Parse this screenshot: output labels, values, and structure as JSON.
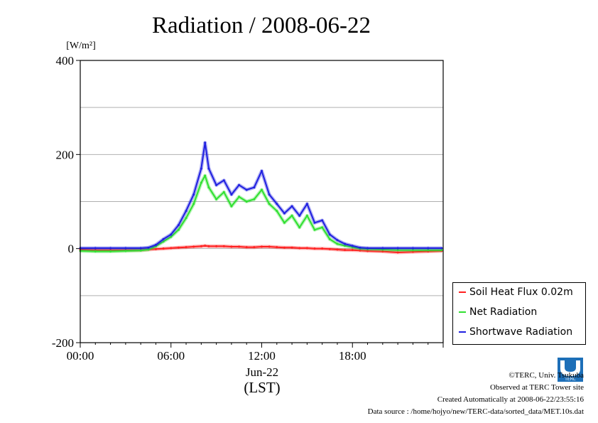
{
  "chart_data": {
    "type": "line",
    "title": "Radiation / 2008-06-22",
    "ylabel_unit": "[W/m²]",
    "xlabel_date": "Jun-22",
    "xlabel_tz": "(LST)",
    "xlim": [
      "00:00",
      "24:00"
    ],
    "ylim": [
      -200,
      400
    ],
    "yticks": [
      -200,
      0,
      200,
      400
    ],
    "xtick_labels": [
      "00:00",
      "06:00",
      "12:00",
      "18:00"
    ],
    "grid": true,
    "legend_position": "right-bottom-outside",
    "x_hours": [
      0,
      1,
      2,
      3,
      4,
      4.5,
      5,
      5.5,
      6,
      6.5,
      7,
      7.5,
      8,
      8.25,
      8.5,
      9,
      9.5,
      10,
      10.5,
      11,
      11.5,
      12,
      12.5,
      13,
      13.5,
      14,
      14.5,
      15,
      15.5,
      16,
      16.5,
      17,
      17.5,
      18,
      18.5,
      19,
      20,
      21,
      22,
      23,
      23.9
    ],
    "series": [
      {
        "name": "Soil Heat Flux 0.02m",
        "color": "#ff2020",
        "values": [
          -2,
          -3,
          -3,
          -3,
          -3,
          -2,
          -1,
          0,
          1,
          2,
          3,
          4,
          5,
          6,
          5,
          5,
          5,
          4,
          4,
          3,
          3,
          4,
          4,
          3,
          2,
          2,
          1,
          1,
          0,
          0,
          -1,
          -2,
          -3,
          -3,
          -4,
          -5,
          -6,
          -8,
          -7,
          -6,
          -5
        ]
      },
      {
        "name": "Net Radiation",
        "color": "#30e030",
        "values": [
          -5,
          -6,
          -6,
          -5,
          -4,
          -2,
          5,
          15,
          25,
          40,
          65,
          95,
          140,
          155,
          130,
          105,
          120,
          90,
          110,
          100,
          105,
          125,
          95,
          80,
          55,
          70,
          45,
          70,
          40,
          45,
          20,
          10,
          6,
          3,
          0,
          -1,
          -2,
          -3,
          -3,
          -3,
          -3
        ]
      },
      {
        "name": "Shortwave Radiation",
        "color": "#2020e0",
        "values": [
          1,
          1,
          1,
          1,
          1,
          2,
          8,
          20,
          30,
          50,
          80,
          115,
          170,
          225,
          170,
          135,
          145,
          115,
          135,
          125,
          130,
          165,
          115,
          95,
          75,
          90,
          70,
          95,
          55,
          60,
          30,
          18,
          10,
          6,
          2,
          1,
          1,
          1,
          1,
          1,
          1
        ]
      }
    ]
  },
  "footer": {
    "copyright": "©TERC, Univ. Tsukuba",
    "observed": "Observed at TERC Tower site",
    "created": "Created Automatically at 2008-06-22/23:55:16",
    "source": "Data source : /home/hojyo/new/TERC-data/sorted_data/MET.10s.dat",
    "logo_text": "TERC"
  }
}
